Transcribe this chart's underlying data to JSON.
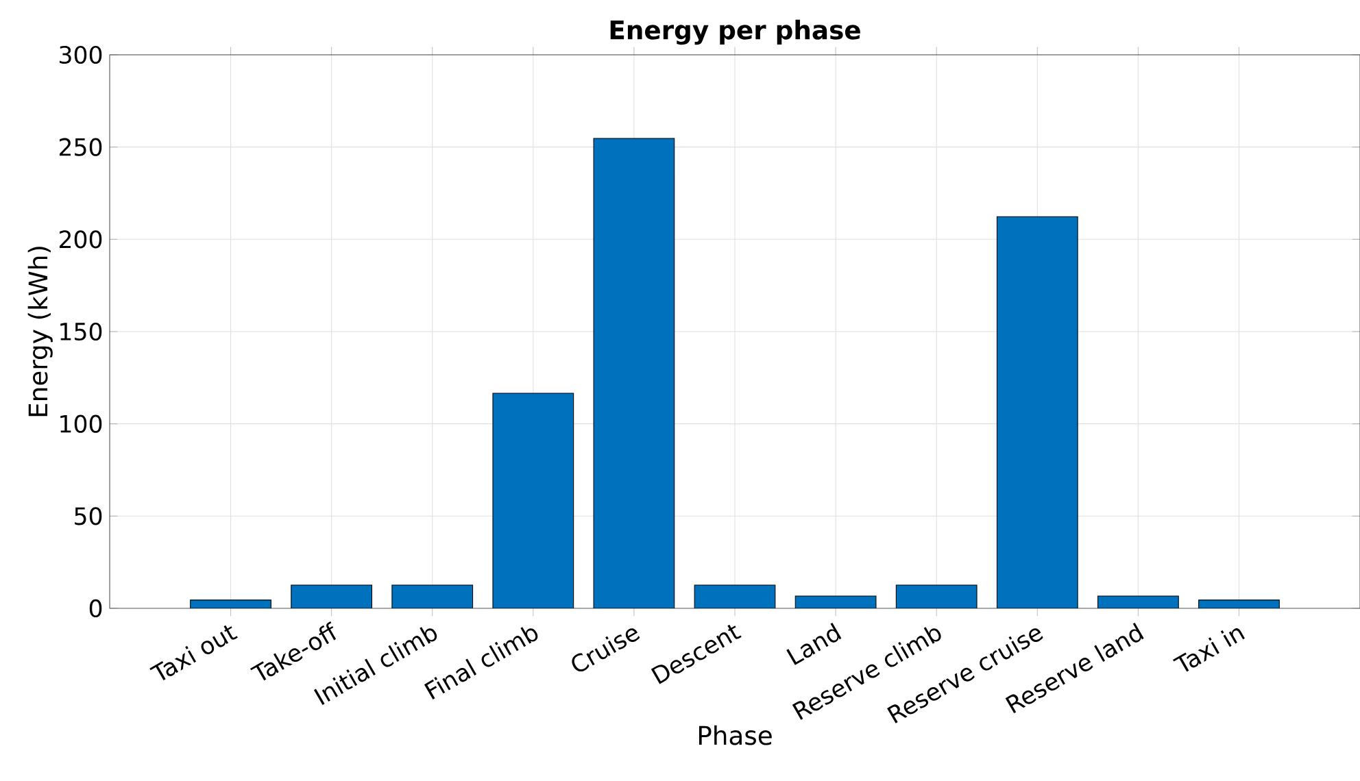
{
  "chart_data": {
    "type": "bar",
    "title": "Energy per phase",
    "xlabel": "Phase",
    "ylabel": "Energy (kWh)",
    "categories": [
      "Taxi out",
      "Take-off",
      "Initial climb",
      "Final climb",
      "Cruise",
      "Descent",
      "Land",
      "Reserve climb",
      "Reserve cruise",
      "Reserve land",
      "Taxi in"
    ],
    "values": [
      4.5,
      12.6,
      12.6,
      116.6,
      254.7,
      12.6,
      6.7,
      12.6,
      212.3,
      6.7,
      4.5
    ],
    "color": "#0072bd",
    "ylim": [
      0,
      300
    ],
    "yticks": [
      0,
      50,
      100,
      150,
      200,
      250,
      300
    ],
    "grid": true
  }
}
